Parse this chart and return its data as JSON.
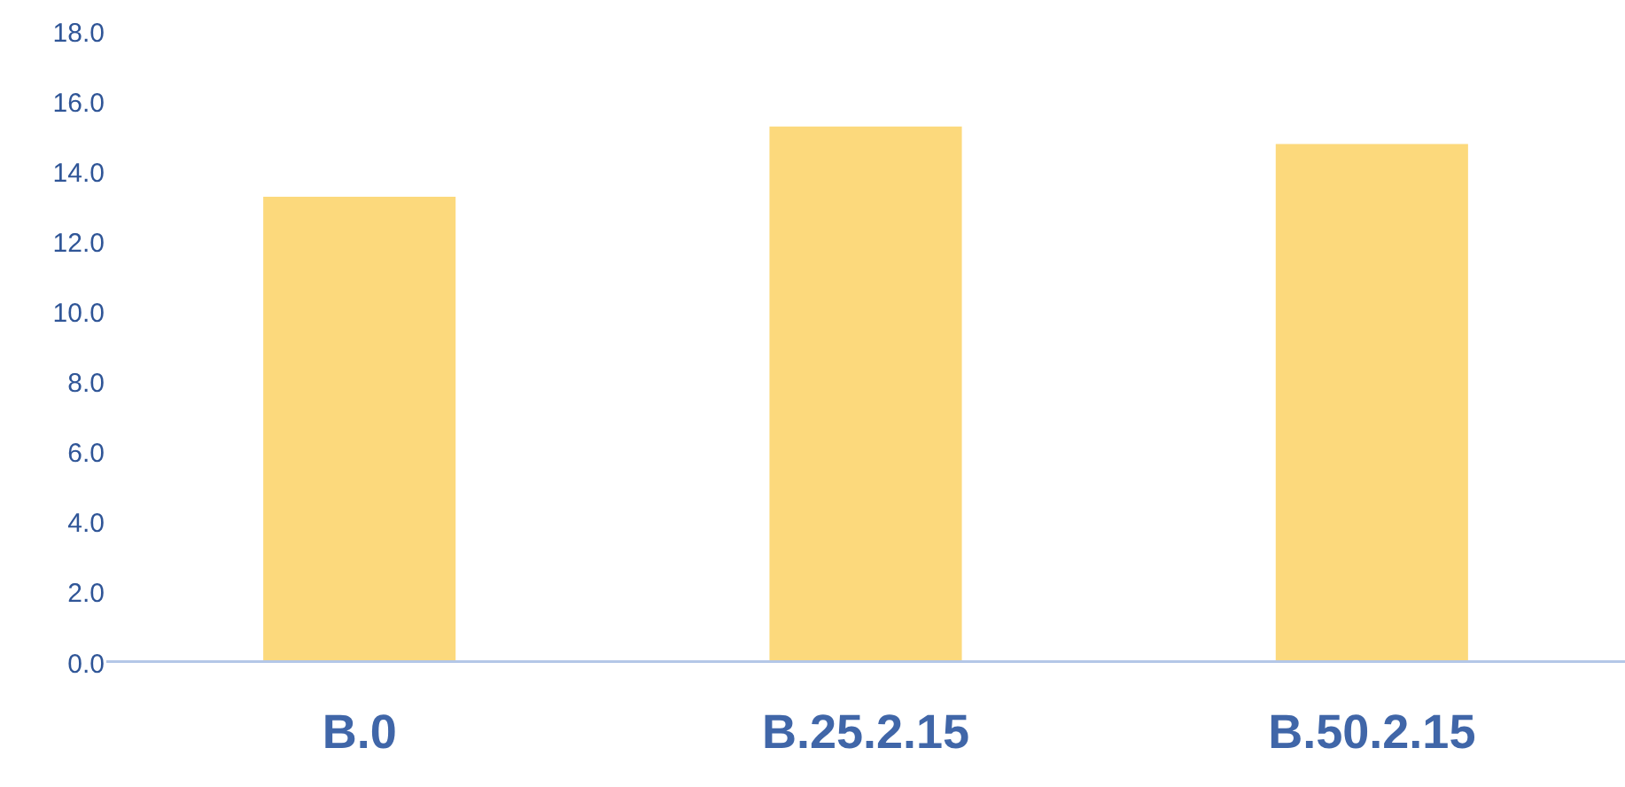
{
  "chart_data": {
    "type": "bar",
    "categories": [
      "B.0",
      "B.25.2.15",
      "B.50.2.15"
    ],
    "values": [
      13.3,
      15.3,
      14.8
    ],
    "color": "#fcd97c",
    "ylim": [
      0,
      18
    ],
    "yticks": [
      {
        "value": 0,
        "label": "0.0"
      },
      {
        "value": 2,
        "label": "2.0"
      },
      {
        "value": 4,
        "label": "4.0"
      },
      {
        "value": 6,
        "label": "6.0"
      },
      {
        "value": 8,
        "label": "8.0"
      },
      {
        "value": 10,
        "label": "10.0"
      },
      {
        "value": 12,
        "label": "12.0"
      },
      {
        "value": 14,
        "label": "14.0"
      },
      {
        "value": 16,
        "label": "16.0"
      },
      {
        "value": 18,
        "label": "18.0"
      }
    ]
  }
}
